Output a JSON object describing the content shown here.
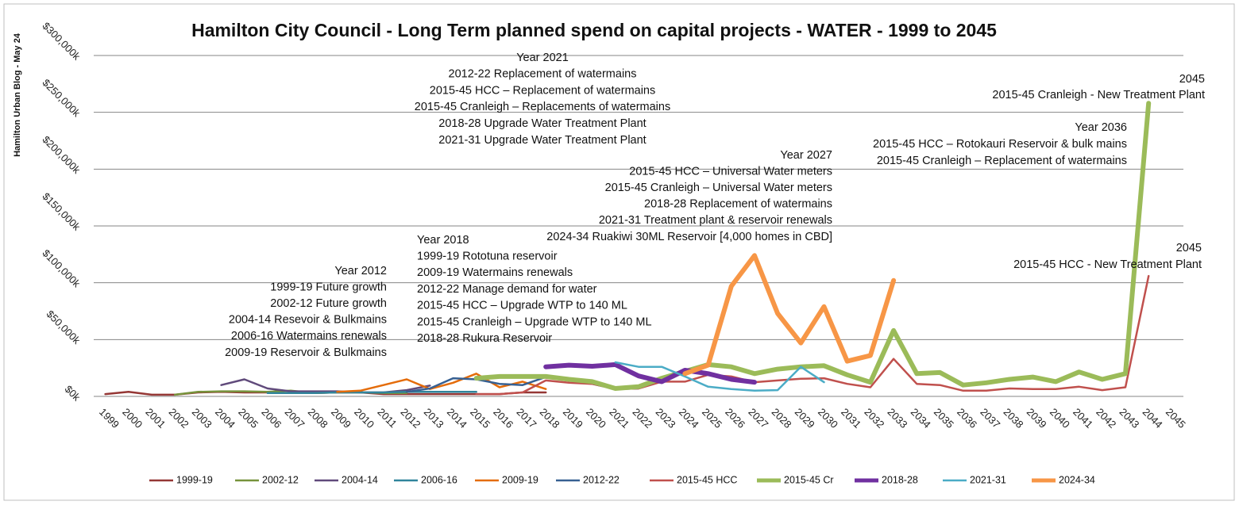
{
  "chart_data": {
    "type": "line",
    "title": "Hamilton City Council - Long Term planned spend on capital projects - WATER - 1999 to 2045",
    "side_label": "Hamilton Urban Blog - May 24",
    "categories": [
      "1999",
      "2000",
      "2001",
      "2002",
      "2003",
      "2004",
      "2005",
      "2006",
      "2007",
      "2008",
      "2009",
      "2010",
      "2011",
      "2012",
      "2013",
      "2014",
      "2015",
      "2016",
      "2017",
      "2018",
      "2019",
      "2020",
      "2021",
      "2022",
      "2023",
      "2024",
      "2025",
      "2026",
      "2027",
      "2028",
      "2029",
      "2030",
      "2031",
      "2032",
      "2033",
      "2034",
      "2035",
      "2036",
      "2037",
      "2038",
      "2039",
      "2040",
      "2041",
      "2042",
      "2043",
      "2044",
      "2045"
    ],
    "ylim": [
      0,
      300000
    ],
    "yticks": [
      {
        "value": 0,
        "label": "$0k"
      },
      {
        "value": 50000,
        "label": "$50,000k"
      },
      {
        "value": 100000,
        "label": "$100,000k"
      },
      {
        "value": 150000,
        "label": "$150,000k"
      },
      {
        "value": 200000,
        "label": "$200,000k"
      },
      {
        "value": 250000,
        "label": "$250,000k"
      },
      {
        "value": 300000,
        "label": "$300,000k"
      }
    ],
    "grid": true,
    "legend": "bottom",
    "series": [
      {
        "name": "1999-19",
        "color": "#953735",
        "line_width": 2.5,
        "values": [
          2000,
          4000,
          1500,
          1500,
          3500,
          4000,
          3500,
          3500,
          3000,
          3000,
          3500,
          3500,
          2000,
          2000,
          2000,
          2000,
          2000,
          2000,
          3500,
          3500,
          null,
          null,
          null,
          null,
          null,
          null,
          null,
          null,
          null,
          null,
          null,
          null,
          null,
          null,
          null,
          null,
          null,
          null,
          null,
          null,
          null,
          null,
          null,
          null,
          null,
          null,
          null
        ]
      },
      {
        "name": "2002-12",
        "color": "#77933c",
        "line_width": 2.5,
        "values": [
          null,
          null,
          null,
          1500,
          4000,
          4500,
          4500,
          4000,
          5000,
          3000,
          3500,
          3500,
          3000,
          3000,
          null,
          null,
          null,
          null,
          null,
          null,
          null,
          null,
          null,
          null,
          null,
          null,
          null,
          null,
          null,
          null,
          null,
          null,
          null,
          null,
          null,
          null,
          null,
          null,
          null,
          null,
          null,
          null,
          null,
          null,
          null,
          null,
          null
        ]
      },
      {
        "name": "2004-14",
        "color": "#604a7b",
        "line_width": 2.5,
        "values": [
          null,
          null,
          null,
          null,
          null,
          10000,
          15000,
          7000,
          4500,
          4500,
          4500,
          3500,
          3500,
          5500,
          9500,
          null,
          null,
          null,
          null,
          null,
          null,
          null,
          null,
          null,
          null,
          null,
          null,
          null,
          null,
          null,
          null,
          null,
          null,
          null,
          null,
          null,
          null,
          null,
          null,
          null,
          null,
          null,
          null,
          null,
          null,
          null,
          null
        ]
      },
      {
        "name": "2006-16",
        "color": "#31859c",
        "line_width": 2.5,
        "values": [
          null,
          null,
          null,
          null,
          null,
          null,
          null,
          3000,
          3000,
          3000,
          3500,
          3500,
          3500,
          4000,
          4000,
          4000,
          4000,
          null,
          null,
          null,
          null,
          null,
          null,
          null,
          null,
          null,
          null,
          null,
          null,
          null,
          null,
          null,
          null,
          null,
          null,
          null,
          null,
          null,
          null,
          null,
          null,
          null,
          null,
          null,
          null,
          null,
          null
        ]
      },
      {
        "name": "2009-19",
        "color": "#e46c0a",
        "line_width": 2.5,
        "values": [
          null,
          null,
          null,
          null,
          null,
          null,
          null,
          null,
          null,
          null,
          4000,
          5000,
          10000,
          15000,
          6500,
          12000,
          20000,
          8000,
          13000,
          6500,
          null,
          null,
          null,
          null,
          null,
          null,
          null,
          null,
          null,
          null,
          null,
          null,
          null,
          null,
          null,
          null,
          null,
          null,
          null,
          null,
          null,
          null,
          null,
          null,
          null,
          null,
          null
        ]
      },
      {
        "name": "2012-22",
        "color": "#376092",
        "line_width": 2.5,
        "values": [
          null,
          null,
          null,
          null,
          null,
          null,
          null,
          null,
          null,
          null,
          null,
          null,
          null,
          4000,
          7000,
          16000,
          15000,
          11000,
          10000,
          17000,
          14000,
          11000,
          6500,
          7000,
          null,
          null,
          null,
          null,
          null,
          null,
          null,
          null,
          null,
          null,
          null,
          null,
          null,
          null,
          null,
          null,
          null,
          null,
          null,
          null,
          null,
          null,
          null
        ]
      },
      {
        "name": "2015-45 HCC",
        "color": "#c0504d",
        "line_width": 2.5,
        "values": [
          null,
          null,
          null,
          null,
          null,
          null,
          null,
          null,
          null,
          null,
          null,
          null,
          null,
          null,
          null,
          null,
          2000,
          2000,
          3500,
          14000,
          12000,
          11000,
          6500,
          7000,
          13000,
          13000,
          19000,
          17500,
          12500,
          14000,
          15500,
          16000,
          11000,
          8000,
          33000,
          11000,
          10000,
          5000,
          5000,
          7000,
          6500,
          6500,
          8500,
          5500,
          8000,
          106000,
          null
        ]
      },
      {
        "name": "2015-45 Cr",
        "color": "#9bbb59",
        "line_width": 6,
        "values": [
          null,
          null,
          null,
          null,
          null,
          null,
          null,
          null,
          null,
          null,
          null,
          null,
          null,
          null,
          null,
          null,
          16000,
          17500,
          17500,
          17500,
          15000,
          13000,
          7000,
          8500,
          16000,
          22000,
          28000,
          26000,
          20000,
          24000,
          26000,
          27000,
          19000,
          12500,
          58000,
          20000,
          21000,
          10000,
          12000,
          15000,
          17000,
          13000,
          21500,
          15000,
          20000,
          258000,
          null
        ]
      },
      {
        "name": "2018-28",
        "color": "#7030a0",
        "line_width": 6,
        "values": [
          null,
          null,
          null,
          null,
          null,
          null,
          null,
          null,
          null,
          null,
          null,
          null,
          null,
          null,
          null,
          null,
          null,
          null,
          null,
          26000,
          27500,
          26500,
          28000,
          18000,
          13000,
          23000,
          20000,
          15000,
          12500,
          null,
          null,
          null,
          null,
          null,
          null,
          null,
          null,
          null,
          null,
          null,
          null,
          null,
          null,
          null,
          null,
          null,
          null
        ]
      },
      {
        "name": "2021-31",
        "color": "#4bacc6",
        "line_width": 2.5,
        "values": [
          null,
          null,
          null,
          null,
          null,
          null,
          null,
          null,
          null,
          null,
          null,
          null,
          null,
          null,
          null,
          null,
          null,
          null,
          null,
          null,
          null,
          null,
          30000,
          26000,
          26000,
          17500,
          8500,
          6500,
          5000,
          5500,
          26000,
          12500,
          null,
          null,
          null,
          null,
          null,
          null,
          null,
          null,
          null,
          null,
          null,
          null,
          null,
          null,
          null
        ]
      },
      {
        "name": "2024-34",
        "color": "#f79646",
        "line_width": 6,
        "values": [
          null,
          null,
          null,
          null,
          null,
          null,
          null,
          null,
          null,
          null,
          null,
          null,
          null,
          null,
          null,
          null,
          null,
          null,
          null,
          null,
          null,
          null,
          null,
          null,
          null,
          20000,
          27500,
          97000,
          124000,
          73000,
          47000,
          79000,
          31000,
          36000,
          102000,
          null,
          null,
          null,
          null,
          null,
          null,
          null,
          null,
          null,
          null,
          null,
          null
        ]
      }
    ],
    "annotations": [
      [
        "Year 2012",
        "1999-19 Future growth",
        "2002-12 Future growth",
        "2004-14 Resevoir & Bulkmains",
        "2006-16 Watermains renewals",
        "2009-19 Reservoir & Bulkmains"
      ],
      [
        "Year 2018",
        "1999-19 Rototuna reservoir",
        "2009-19 Watermains renewals",
        "2012-22 Manage demand for water",
        "2015-45 HCC – Upgrade WTP to 140 ML",
        "2015-45 Cranleigh – Upgrade WTP to 140 ML",
        "2018-28 Rukura Reservoir"
      ],
      [
        "Year 2021",
        "2012-22 Replacement of watermains",
        "2015-45 HCC – Replacement of watermains",
        "2015-45 Cranleigh – Replacements of watermains",
        "2018-28  Upgrade Water Treatment Plant",
        "2021-31 Upgrade Water Treatment Plant"
      ],
      [
        "Year 2027",
        "2015-45 HCC – Universal Water meters",
        "2015-45 Cranleigh – Universal Water meters",
        "2018-28 Replacement of watermains",
        "2021-31 Treatment plant & reservoir renewals",
        "2024-34 Ruakiwi 30ML Reservoir [4,000 homes in CBD]"
      ],
      [
        "Year 2036",
        "2015-45 HCC – Rotokauri Reservoir & bulk mains",
        "2015-45 Cranleigh – Replacement of watermains"
      ],
      [
        "2045",
        "2015-45 Cranleigh - New Treatment Plant"
      ],
      [
        "2045",
        "2015-45 HCC - New Treatment Plant"
      ]
    ]
  }
}
